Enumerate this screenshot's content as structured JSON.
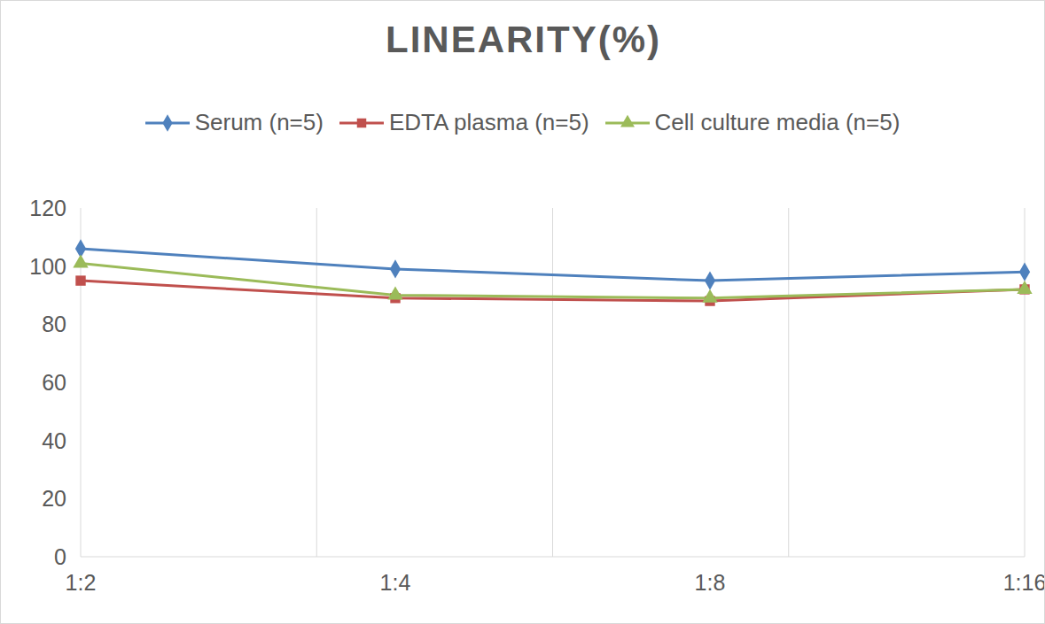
{
  "chart_data": {
    "type": "line",
    "title": "LINEARITY(%)",
    "categories": [
      "1:2",
      "1:4",
      "1:8",
      "1:16"
    ],
    "series": [
      {
        "name": "Serum (n=5)",
        "color": "#4f81bd",
        "marker": "diamond",
        "values": [
          106,
          99,
          95,
          98
        ]
      },
      {
        "name": "EDTA plasma (n=5)",
        "color": "#c0504d",
        "marker": "square",
        "values": [
          95,
          89,
          88,
          92
        ]
      },
      {
        "name": "Cell culture media (n=5)",
        "color": "#9bbb59",
        "marker": "triangle",
        "values": [
          101,
          90,
          89,
          92
        ]
      }
    ],
    "ylim": [
      0,
      120
    ],
    "yticks": [
      0,
      20,
      40,
      60,
      80,
      100,
      120
    ],
    "grid": true,
    "legend": "top"
  }
}
